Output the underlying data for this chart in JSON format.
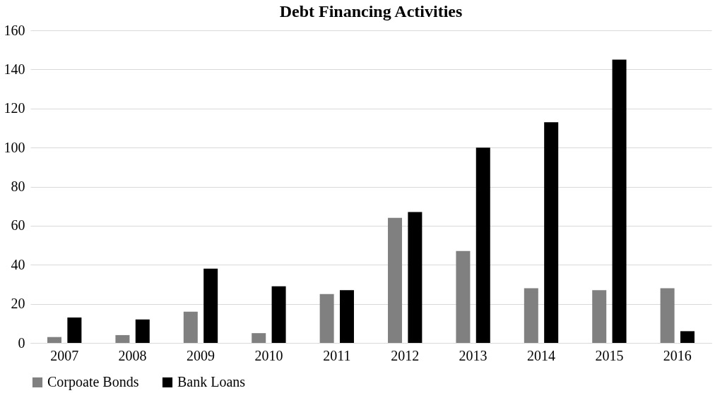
{
  "chart_data": {
    "type": "bar",
    "title": "Debt Financing Activities",
    "categories": [
      "2007",
      "2008",
      "2009",
      "2010",
      "2011",
      "2012",
      "2013",
      "2014",
      "2015",
      "2016"
    ],
    "series": [
      {
        "name": "Corpoate Bonds",
        "color": "#808080",
        "values": [
          3,
          4,
          16,
          5,
          25,
          64,
          47,
          28,
          27,
          28
        ]
      },
      {
        "name": "Bank Loans",
        "color": "#000000",
        "values": [
          13,
          12,
          38,
          29,
          27,
          67,
          100,
          113,
          145,
          6
        ]
      }
    ],
    "ylim": [
      0,
      160
    ],
    "yticks": [
      0,
      20,
      40,
      60,
      80,
      100,
      120,
      140,
      160
    ],
    "grid": "y",
    "legend": "bottom"
  }
}
